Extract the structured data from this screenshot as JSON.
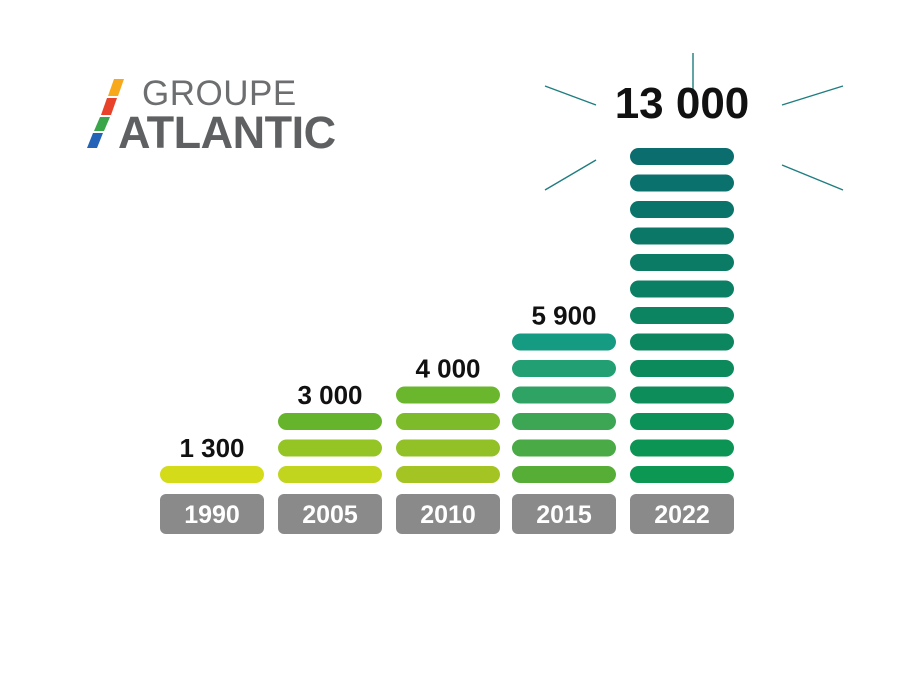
{
  "logo": {
    "line1": "GROUPE",
    "line2": "ATLANTIC",
    "stripe_colors": [
      "#f7a81b",
      "#e8432a",
      "#3aa64a",
      "#2364b8"
    ]
  },
  "chart_data": {
    "type": "bar",
    "categories": [
      "1990",
      "2005",
      "2010",
      "2015",
      "2022"
    ],
    "values": [
      1300,
      3000,
      4000,
      5900,
      13000
    ],
    "value_labels": [
      "1 300",
      "3 000",
      "4 000",
      "5 900",
      "13 000"
    ],
    "segment_value": 1000,
    "highlight": {
      "category": "2022",
      "marks": "burst-rays"
    },
    "colors": {
      "1990": [
        "#d4db18",
        "#d4db18"
      ],
      "2005": [
        "#c1d51e",
        "#66b42c"
      ],
      "2010": [
        "#a4c424",
        "#6ab72e"
      ],
      "2015": [
        "#56ae37",
        "#159b82"
      ],
      "2022": [
        "#0c9853",
        "#0b6d6e"
      ],
      "label_box": "#8a8a8a"
    },
    "grid": false,
    "legend": "none"
  }
}
